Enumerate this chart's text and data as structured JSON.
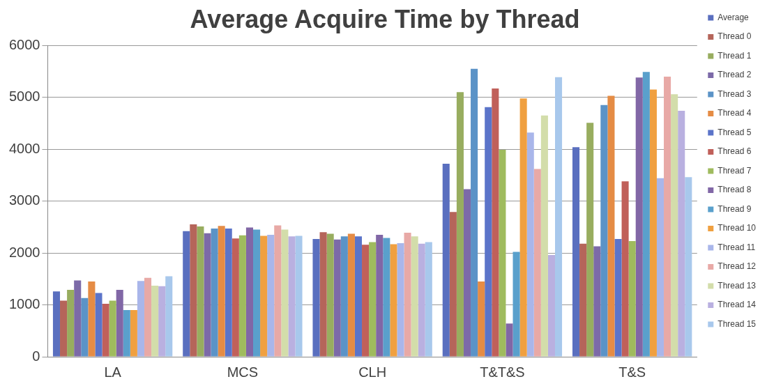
{
  "chart_data": {
    "type": "bar",
    "title": "Average Acquire Time by Thread",
    "categories": [
      "LA",
      "MCS",
      "CLH",
      "T&T&S",
      "T&S"
    ],
    "ylim": [
      0,
      6000
    ],
    "yticks": [
      0,
      1000,
      2000,
      3000,
      4000,
      5000,
      6000
    ],
    "grid": "y",
    "legend": "top right",
    "series": [
      {
        "name": "Average",
        "color": "#5a6fbf",
        "values": [
          1260,
          2420,
          2270,
          3720,
          4040
        ]
      },
      {
        "name": "Thread 0",
        "color": "#b5655a",
        "values": [
          1080,
          2550,
          2400,
          2790,
          2180
        ]
      },
      {
        "name": "Thread 1",
        "color": "#98ad5f",
        "values": [
          1290,
          2510,
          2370,
          5100,
          4510
        ]
      },
      {
        "name": "Thread 2",
        "color": "#7c6aa8",
        "values": [
          1470,
          2380,
          2260,
          3230,
          2130
        ]
      },
      {
        "name": "Thread 3",
        "color": "#5b93c7",
        "values": [
          1130,
          2470,
          2320,
          5550,
          4850
        ]
      },
      {
        "name": "Thread 4",
        "color": "#e58c45",
        "values": [
          1450,
          2520,
          2370,
          1450,
          5030
        ]
      },
      {
        "name": "Thread 5",
        "color": "#5b74c9",
        "values": [
          1230,
          2470,
          2320,
          4810,
          2270
        ]
      },
      {
        "name": "Thread 6",
        "color": "#c0605a",
        "values": [
          1020,
          2280,
          2160,
          5170,
          3380
        ]
      },
      {
        "name": "Thread 7",
        "color": "#9fbb5e",
        "values": [
          1080,
          2340,
          2210,
          3990,
          2230
        ]
      },
      {
        "name": "Thread 8",
        "color": "#8167a6",
        "values": [
          1290,
          2490,
          2350,
          640,
          5380
        ]
      },
      {
        "name": "Thread 9",
        "color": "#5aa0cc",
        "values": [
          900,
          2450,
          2290,
          2020,
          5490
        ]
      },
      {
        "name": "Thread 10",
        "color": "#f0a040",
        "values": [
          900,
          2330,
          2170,
          4980,
          5150
        ]
      },
      {
        "name": "Thread 11",
        "color": "#a9b6ea",
        "values": [
          1460,
          2350,
          2190,
          4320,
          3440
        ]
      },
      {
        "name": "Thread 12",
        "color": "#e8a9a6",
        "values": [
          1520,
          2530,
          2390,
          3620,
          5400
        ]
      },
      {
        "name": "Thread 13",
        "color": "#d3ddaa",
        "values": [
          1370,
          2450,
          2320,
          4650,
          5060
        ]
      },
      {
        "name": "Thread 14",
        "color": "#b9b0e0",
        "values": [
          1360,
          2320,
          2180,
          1960,
          4740
        ]
      },
      {
        "name": "Thread 15",
        "color": "#a8c8ec",
        "values": [
          1550,
          2330,
          2210,
          5390,
          3460
        ]
      }
    ]
  }
}
